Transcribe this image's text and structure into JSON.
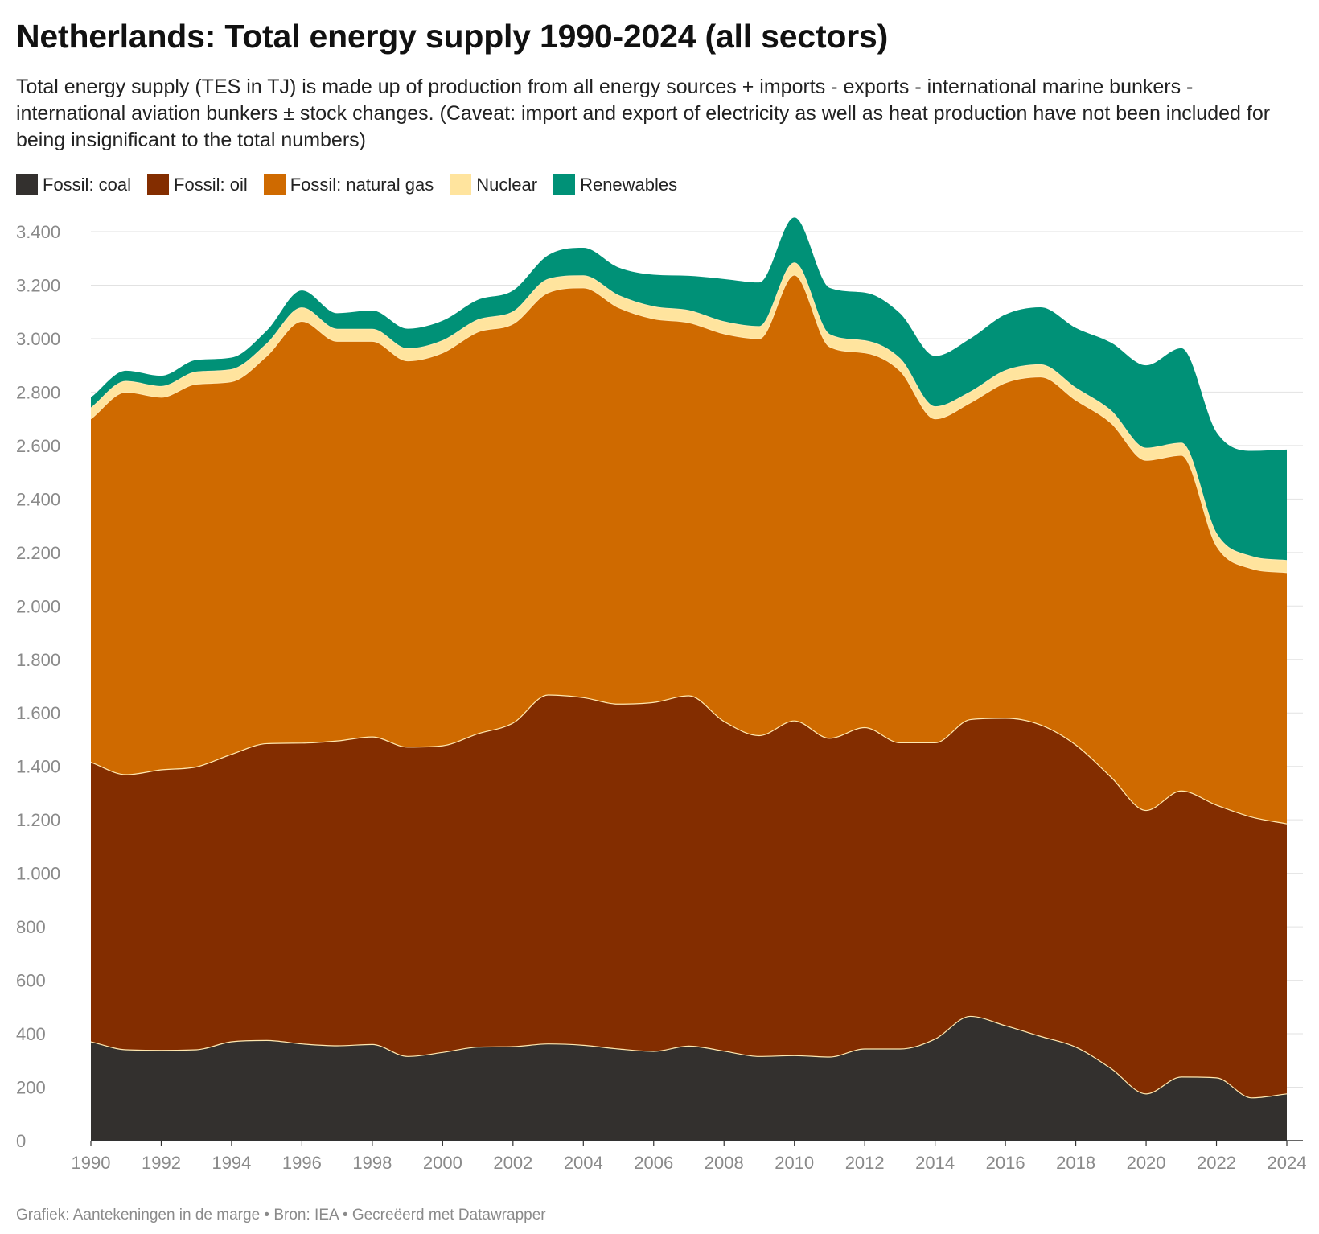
{
  "header": {
    "title": "Netherlands: Total energy supply 1990-2024 (all sectors)",
    "subtitle": "Total energy supply (TES in TJ) is made up of production from all energy sources + imports - exports - international marine bunkers - international aviation bunkers ± stock changes. (Caveat: import and export of electricity as well as heat production have not been included for being insignificant to the total numbers)"
  },
  "footer": {
    "credit": "Grafiek: Aantekeningen in de marge • Bron: IEA • Gecreëerd met Datawrapper"
  },
  "chart_data": {
    "type": "area",
    "stacked": true,
    "x": [
      1990,
      1991,
      1992,
      1993,
      1994,
      1995,
      1996,
      1997,
      1998,
      1999,
      2000,
      2001,
      2002,
      2003,
      2004,
      2005,
      2006,
      2007,
      2008,
      2009,
      2010,
      2011,
      2012,
      2013,
      2014,
      2015,
      2016,
      2017,
      2018,
      2019,
      2020,
      2021,
      2022,
      2023,
      2024
    ],
    "xticks": [
      1990,
      1992,
      1994,
      1996,
      1998,
      2000,
      2002,
      2004,
      2006,
      2008,
      2010,
      2012,
      2014,
      2016,
      2018,
      2020,
      2022,
      2024
    ],
    "ylim": [
      0,
      3400
    ],
    "yticks": [
      0,
      200,
      400,
      600,
      800,
      1000,
      1200,
      1400,
      1600,
      1800,
      2000,
      2200,
      2400,
      2600,
      2800,
      3000,
      3200,
      3400
    ],
    "ytick_labels": [
      "0",
      "200",
      "400",
      "600",
      "800",
      "1.000",
      "1.200",
      "1.400",
      "1.600",
      "1.800",
      "2.000",
      "2.200",
      "2.400",
      "2.600",
      "2.800",
      "3.000",
      "3.200",
      "3.400"
    ],
    "grid": true,
    "legend_position": "top-left",
    "series": [
      {
        "name": "Fossil: coal",
        "color": "#33302e",
        "values": [
          370,
          340,
          338,
          340,
          370,
          375,
          362,
          355,
          360,
          315,
          330,
          350,
          352,
          362,
          357,
          343,
          334,
          354,
          335,
          315,
          318,
          313,
          343,
          343,
          380,
          465,
          430,
          390,
          350,
          270,
          175,
          238,
          235,
          160,
          175
        ]
      },
      {
        "name": "Fossil: oil",
        "color": "#832d00",
        "values": [
          1045,
          1029,
          1049,
          1058,
          1075,
          1110,
          1125,
          1140,
          1150,
          1157,
          1147,
          1172,
          1210,
          1305,
          1300,
          1290,
          1305,
          1310,
          1233,
          1200,
          1252,
          1192,
          1202,
          1145,
          1108,
          1110,
          1150,
          1165,
          1130,
          1090,
          1060,
          1070,
          1020,
          1050,
          1010
        ]
      },
      {
        "name": "Fossil: natural gas",
        "color": "#cf6a00",
        "values": [
          1285,
          1431,
          1394,
          1432,
          1394,
          1450,
          1578,
          1495,
          1480,
          1445,
          1470,
          1503,
          1493,
          1505,
          1533,
          1483,
          1435,
          1396,
          1450,
          1485,
          1668,
          1465,
          1402,
          1392,
          1212,
          1185,
          1255,
          1302,
          1290,
          1325,
          1310,
          1256,
          970,
          930,
          940
        ]
      },
      {
        "name": "Nuclear",
        "color": "#ffe49e",
        "values": [
          40,
          40,
          40,
          45,
          45,
          45,
          50,
          45,
          45,
          45,
          45,
          45,
          45,
          50,
          45,
          45,
          45,
          45,
          45,
          45,
          45,
          45,
          45,
          45,
          45,
          40,
          45,
          45,
          45,
          45,
          45,
          45,
          45,
          45,
          45
        ]
      },
      {
        "name": "Renewables",
        "color": "#009177",
        "values": [
          40,
          40,
          40,
          45,
          45,
          50,
          65,
          60,
          70,
          75,
          75,
          75,
          80,
          90,
          105,
          105,
          120,
          130,
          160,
          165,
          170,
          175,
          180,
          170,
          190,
          200,
          210,
          215,
          225,
          255,
          310,
          355,
          380,
          395,
          415
        ]
      }
    ]
  }
}
